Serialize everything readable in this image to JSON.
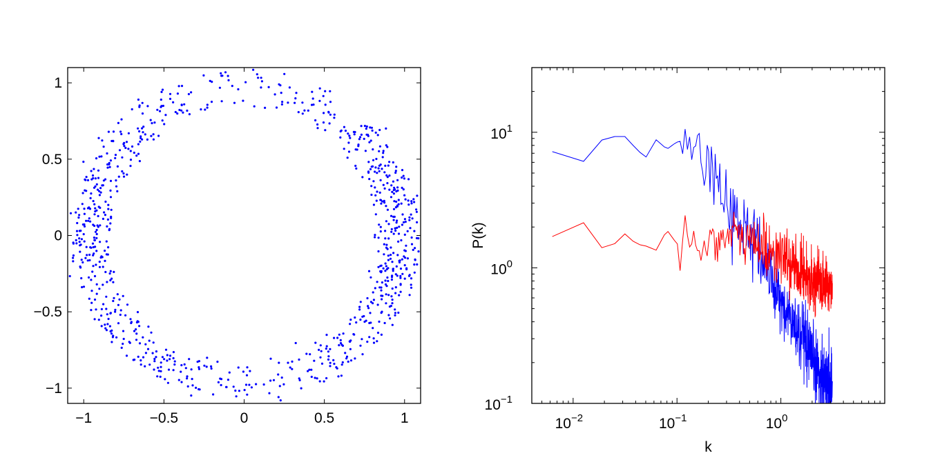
{
  "chart_data": [
    {
      "type": "scatter",
      "title": "",
      "xlabel": "",
      "ylabel": "",
      "xlim": [
        -1.1,
        1.1
      ],
      "ylim": [
        -1.1,
        1.1
      ],
      "xticks": [
        -1,
        -0.5,
        0,
        0.5,
        1
      ],
      "xtick_labels": [
        "−1",
        "−0.5",
        "0",
        "0.5",
        "1"
      ],
      "yticks": [
        -1,
        -0.5,
        0,
        0.5,
        1
      ],
      "ytick_labels": [
        "−1",
        "−0.5",
        "0",
        "0.5",
        "1"
      ],
      "series": [
        {
          "name": "points",
          "color": "#0000ff",
          "description_ring": {
            "cx": 0.0,
            "cy": 0.0,
            "inner_radius": 0.85,
            "outer_radius": 1.08,
            "count": 900,
            "side_density": "higher near x = ±1"
          }
        }
      ],
      "grid": false,
      "legend": "none"
    },
    {
      "type": "line",
      "title": "",
      "xlabel": "k",
      "ylabel": "P(k)",
      "xscale": "log",
      "yscale": "log",
      "xlim": [
        0.004,
        10
      ],
      "ylim": [
        0.1,
        30
      ],
      "xticks": [
        0.01,
        0.1,
        1
      ],
      "xtick_base": [
        "10",
        "10",
        "10"
      ],
      "xtick_exp": [
        "−2",
        "−1",
        "0"
      ],
      "yticks": [
        0.1,
        1,
        10
      ],
      "ytick_base": [
        "10",
        "10",
        "10"
      ],
      "ytick_exp": [
        "−1",
        "0",
        "1"
      ],
      "k_range": [
        0.0063,
        3.14
      ],
      "series": [
        {
          "name": "blue",
          "color": "#0000ff",
          "trend_points": [
            [
              0.0063,
              7.2
            ],
            [
              0.0126,
              6.1
            ],
            [
              0.019,
              8.8
            ],
            [
              0.025,
              9.3
            ],
            [
              0.032,
              9.3
            ],
            [
              0.04,
              7.6
            ],
            [
              0.05,
              6.5
            ],
            [
              0.063,
              8.8
            ],
            [
              0.08,
              7.5
            ],
            [
              0.1,
              8.5
            ],
            [
              0.13,
              7.5
            ],
            [
              0.16,
              7.2
            ],
            [
              0.2,
              5.0
            ],
            [
              0.3,
              3.2
            ],
            [
              0.4,
              2.2
            ],
            [
              0.5,
              1.7
            ],
            [
              0.7,
              1.1
            ],
            [
              1.0,
              0.55
            ],
            [
              1.5,
              0.32
            ],
            [
              2.0,
              0.2
            ],
            [
              3.14,
              0.13
            ]
          ]
        },
        {
          "name": "red",
          "color": "#ff0000",
          "trend_points": [
            [
              0.0063,
              1.7
            ],
            [
              0.0126,
              2.15
            ],
            [
              0.019,
              1.4
            ],
            [
              0.025,
              1.5
            ],
            [
              0.032,
              1.8
            ],
            [
              0.04,
              1.5
            ],
            [
              0.05,
              1.45
            ],
            [
              0.063,
              1.35
            ],
            [
              0.08,
              1.9
            ],
            [
              0.1,
              1.5
            ],
            [
              0.2,
              1.6
            ],
            [
              0.3,
              1.7
            ],
            [
              0.5,
              1.6
            ],
            [
              0.7,
              1.4
            ],
            [
              1.0,
              1.2
            ],
            [
              1.5,
              0.95
            ],
            [
              2.0,
              0.82
            ],
            [
              3.14,
              0.72
            ]
          ]
        }
      ],
      "grid": false,
      "legend": "none"
    }
  ]
}
